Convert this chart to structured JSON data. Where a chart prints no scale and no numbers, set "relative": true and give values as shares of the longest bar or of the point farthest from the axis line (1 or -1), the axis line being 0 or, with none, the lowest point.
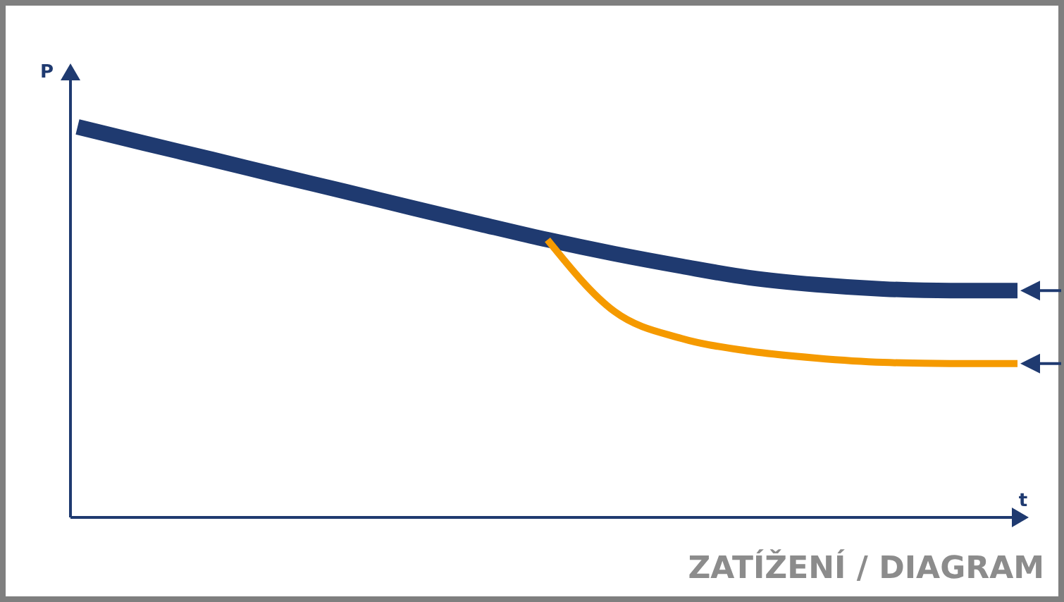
{
  "chart_data": {
    "type": "line",
    "relative": true,
    "title": "ZATÍŽENÍ / DIAGRAM",
    "xlabel": "t",
    "ylabel": "P",
    "categories": [
      null,
      null,
      null,
      null,
      null,
      null,
      null,
      null,
      null,
      null,
      null,
      null,
      null,
      null,
      null
    ],
    "series": [
      {
        "color": "#1f3a70",
        "values": [
          1,
          0.958,
          0.917,
          0.875,
          0.834,
          0.792,
          0.751,
          0.711,
          0.675,
          0.643,
          0.614,
          0.596,
          0.585,
          0.581,
          0.581
        ]
      },
      {
        "color": "#f59a00",
        "values": [
          null,
          null,
          null,
          null,
          null,
          null,
          null,
          0.711,
          0.527,
          0.458,
          0.426,
          0.408,
          0.397,
          0.394,
          0.394
        ]
      }
    ]
  }
}
